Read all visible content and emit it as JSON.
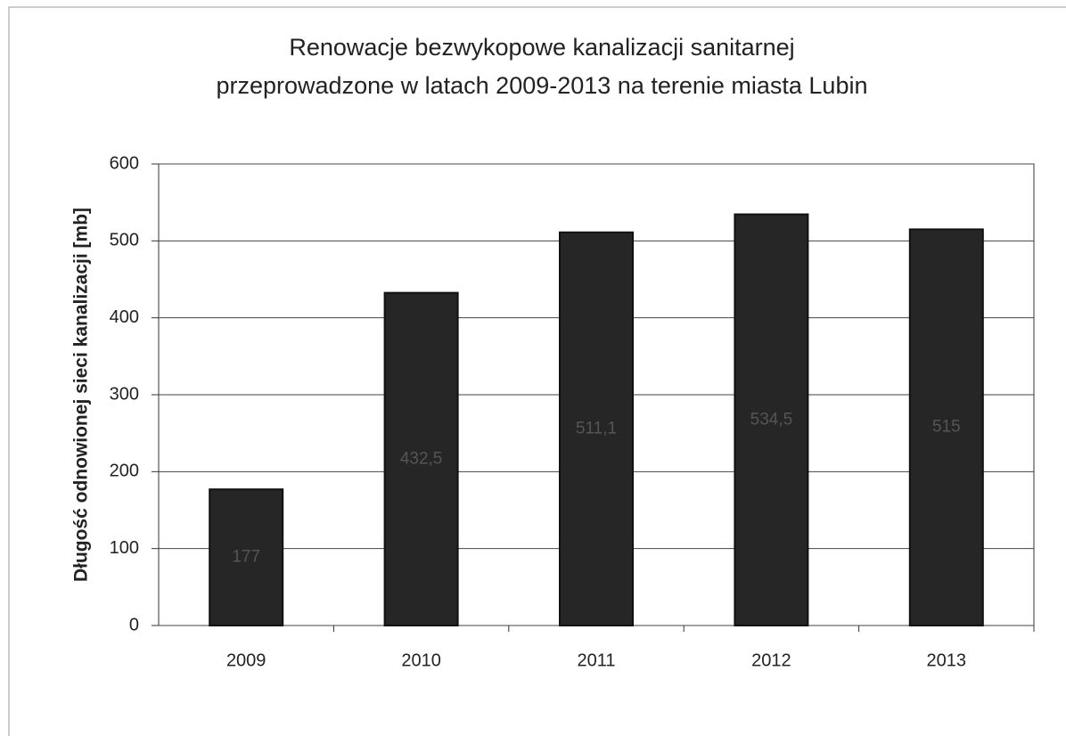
{
  "chart_data": {
    "type": "bar",
    "title": [
      "Renowacje bezwykopowe kanalizacji sanitarnej",
      "przeprowadzone w latach 2009-2013 na terenie miasta Lubin"
    ],
    "y_label": "Długość odnowionej sieci kanalizacji  [mb]",
    "categories": [
      "2009",
      "2010",
      "2011",
      "2012",
      "2013"
    ],
    "values": [
      177,
      432.5,
      511.1,
      534.5,
      515
    ],
    "value_labels": [
      "177",
      "432,5",
      "511,1",
      "534,5",
      "515"
    ],
    "color": "#262626",
    "ylim": [
      0,
      600
    ],
    "yticks": [
      0,
      100,
      200,
      300,
      400,
      500,
      600
    ],
    "grid": true
  }
}
